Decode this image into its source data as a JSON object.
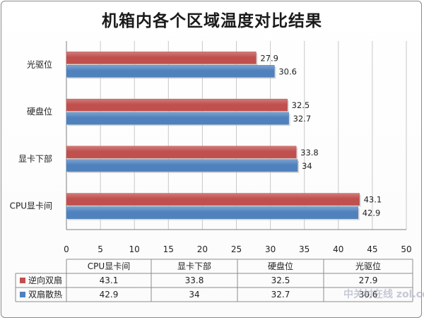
{
  "chart_data": {
    "type": "bar",
    "orientation": "horizontal",
    "title": "机箱内各个区域温度对比结果",
    "categories": [
      "CPU显卡间",
      "显卡下部",
      "硬盘位",
      "光驱位"
    ],
    "series": [
      {
        "name": "逆向双扇",
        "color": "#C0504D",
        "values": [
          43.1,
          33.8,
          32.5,
          27.9
        ],
        "labels": [
          "43.1",
          "33.8",
          "32.5",
          "27.9"
        ]
      },
      {
        "name": "双扇散热",
        "color": "#4F81BD",
        "values": [
          42.9,
          34,
          32.7,
          30.6
        ],
        "labels": [
          "42.9",
          "34",
          "32.7",
          "30.6"
        ]
      }
    ],
    "xlim": [
      0,
      50
    ],
    "xticks": [
      "0",
      "5",
      "10",
      "15",
      "20",
      "25",
      "30",
      "35",
      "40",
      "45",
      "50"
    ],
    "grid": true,
    "data_table": true
  },
  "watermark": "中关村在线 zol.com.cn"
}
